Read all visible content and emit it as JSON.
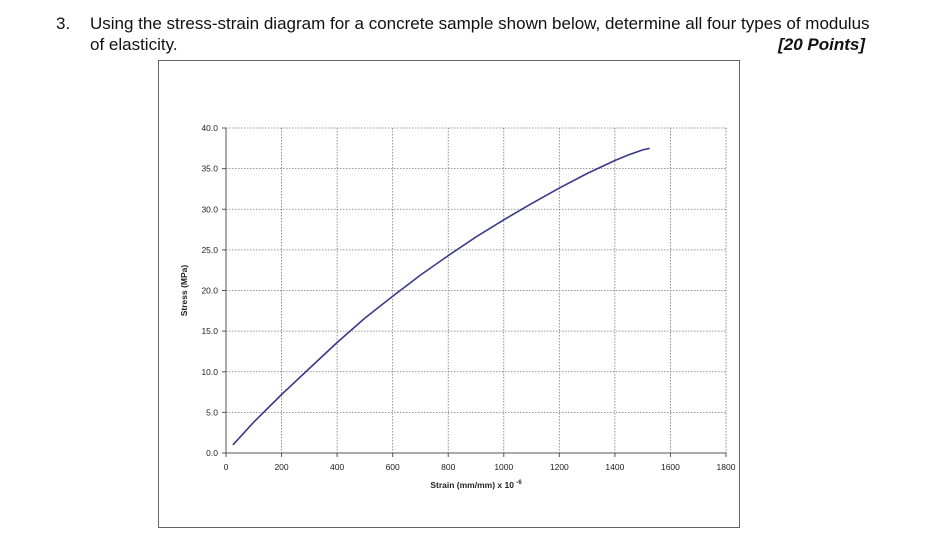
{
  "question": {
    "number": "3.",
    "line1": "Using the stress-strain diagram for a concrete sample shown below, determine all four types of modulus",
    "line2": "of elasticity.",
    "points": "[20 Points]"
  },
  "chart_data": {
    "type": "line",
    "title": "",
    "xlabel": "Strain (mm/mm) x 10",
    "xlabel_exponent": "-6",
    "ylabel": "Stress (MPa)",
    "xlim": [
      0,
      1800
    ],
    "ylim": [
      0,
      40
    ],
    "x_ticks": [
      "0",
      "200",
      "400",
      "600",
      "800",
      "1000",
      "1200",
      "1400",
      "1600",
      "1800"
    ],
    "y_ticks": [
      "0.0",
      "5.0",
      "10.0",
      "15.0",
      "20.0",
      "25.0",
      "30.0",
      "35.0",
      "40.0"
    ],
    "grid": true,
    "legend": "none",
    "line_color": "#3a3a8c",
    "series": [
      {
        "x": [
          25,
          100,
          200,
          300,
          400,
          500,
          600,
          700,
          800,
          900,
          1000,
          1100,
          1200,
          1300,
          1400,
          1450,
          1500,
          1525
        ],
        "values": [
          1.0,
          3.8,
          7.2,
          10.4,
          13.6,
          16.6,
          19.3,
          21.9,
          24.3,
          26.6,
          28.7,
          30.7,
          32.6,
          34.4,
          36.0,
          36.7,
          37.3,
          37.5
        ]
      }
    ]
  }
}
